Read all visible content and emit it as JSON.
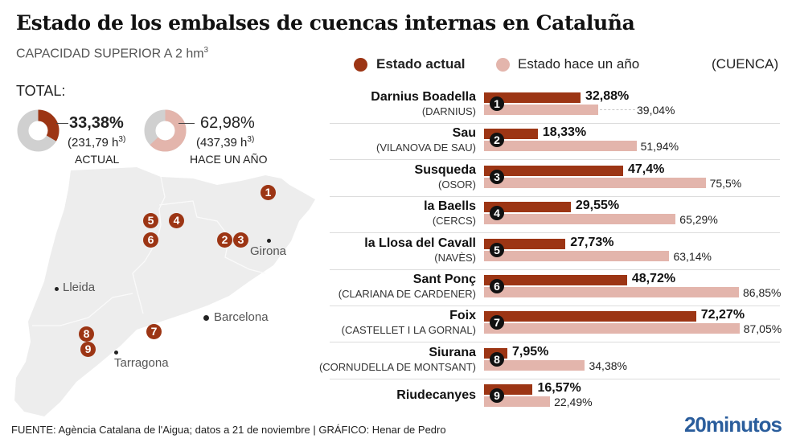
{
  "header": {
    "title": "Estado de los embalses de cuencas internas en Cataluña",
    "subtitle": "CAPACIDAD SUPERIOR A 2 hm",
    "subtitle_sup": "3"
  },
  "totals": {
    "label": "TOTAL:",
    "current": {
      "pct_text": "33,38%",
      "pct": 33.38,
      "abs_text": "(231,79 h",
      "abs_sup": "3)",
      "caption": "ACTUAL"
    },
    "previous": {
      "pct_text": "62,98%",
      "pct": 62.98,
      "abs_text": "(437,39 h",
      "abs_sup": "3)",
      "caption": "HACE UN AÑO"
    }
  },
  "map": {
    "cities": [
      {
        "name": "Girona"
      },
      {
        "name": "Lleida"
      },
      {
        "name": "Barcelona"
      },
      {
        "name": "Tarragona"
      }
    ],
    "markers": [
      "1",
      "2",
      "3",
      "4",
      "5",
      "6",
      "7",
      "8",
      "9"
    ]
  },
  "legend": {
    "current_label": "Estado actual",
    "previous_label": "Estado hace un año",
    "basin_label": "(CUENCA)"
  },
  "colors": {
    "current": "#9c3514",
    "previous": "#e3b5ac",
    "remaining": "#d0d0d0",
    "brand": "#2a5d9c"
  },
  "chart_data": {
    "type": "bar",
    "title": "Estado de los embalses de cuencas internas en Cataluña",
    "subtitle": "CAPACIDAD SUPERIOR A 2 hm3",
    "xlabel": "",
    "ylabel": "",
    "xlim": [
      0,
      100
    ],
    "unit": "%",
    "categories": [
      "Darnius Boadella",
      "Sau",
      "Susqueda",
      "la Baells",
      "la Llosa del Cavall",
      "Sant Ponç",
      "Foix",
      "Siurana",
      "Riudecanyes"
    ],
    "basins": [
      "(DARNIUS)",
      "(VILANOVA DE SAU)",
      "(OSOR)",
      "(CERCS)",
      "(NAVÈS)",
      "(CLARIANA DE CARDENER)",
      "(CASTELLET I LA GORNAL)",
      "(CORNUDELLA DE MONTSANT)",
      ""
    ],
    "numbers": [
      "1",
      "2",
      "3",
      "4",
      "5",
      "6",
      "7",
      "8",
      "9"
    ],
    "series": [
      {
        "name": "Estado actual",
        "values": [
          32.88,
          18.33,
          47.4,
          29.55,
          27.73,
          48.72,
          72.27,
          7.95,
          16.57
        ],
        "labels": [
          "32,88%",
          "18,33%",
          "47,4%",
          "29,55%",
          "27,73%",
          "48,72%",
          "72,27%",
          "7,95%",
          "16,57%"
        ]
      },
      {
        "name": "Estado hace un año",
        "values": [
          39.04,
          51.94,
          75.5,
          65.29,
          63.14,
          86.85,
          87.05,
          34.38,
          22.49
        ],
        "labels": [
          "39,04%",
          "51,94%",
          "75,5%",
          "65,29%",
          "63,14%",
          "86,85%",
          "87,05%",
          "34,38%",
          "22,49%"
        ]
      }
    ],
    "legend": "top"
  },
  "footer": {
    "source": "FUENTE: Agència Catalana de l'Aigua; datos a 21 de noviembre  |  GRÁFICO: Henar de Pedro",
    "brand": "20minutos"
  }
}
